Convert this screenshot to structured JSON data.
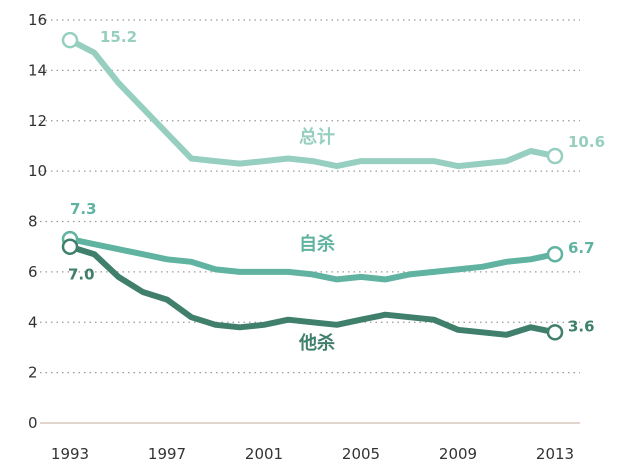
{
  "chart_data": {
    "type": "line",
    "title": "",
    "xlabel": "",
    "ylabel": "",
    "xlim": [
      1993,
      2013
    ],
    "ylim": [
      0,
      16
    ],
    "x_ticks": [
      "1993",
      "1997",
      "2001",
      "2005",
      "2009",
      "2013"
    ],
    "y_ticks": [
      "0",
      "2",
      "4",
      "6",
      "8",
      "10",
      "12",
      "14",
      "16"
    ],
    "grid": "horizontal dotted",
    "x": [
      1993,
      1994,
      1995,
      1996,
      1997,
      1998,
      1999,
      2000,
      2001,
      2002,
      2003,
      2004,
      2005,
      2006,
      2007,
      2008,
      2009,
      2010,
      2011,
      2012,
      2013
    ],
    "series": [
      {
        "name": "总计",
        "color": "#96cfc0",
        "values": [
          15.2,
          14.7,
          13.5,
          12.5,
          11.5,
          10.5,
          10.4,
          10.3,
          10.4,
          10.5,
          10.4,
          10.2,
          10.4,
          10.4,
          10.4,
          10.4,
          10.2,
          10.3,
          10.4,
          10.8,
          10.6
        ],
        "start_label": "15.2",
        "end_label": "10.6"
      },
      {
        "name": "自杀",
        "color": "#5fb3a0",
        "values": [
          7.3,
          7.1,
          6.9,
          6.7,
          6.5,
          6.4,
          6.1,
          6.0,
          6.0,
          6.0,
          5.9,
          5.7,
          5.8,
          5.7,
          5.9,
          6.0,
          6.1,
          6.2,
          6.4,
          6.5,
          6.7
        ],
        "start_label": "7.3",
        "end_label": "6.7"
      },
      {
        "name": "他杀",
        "color": "#3f7f6b",
        "values": [
          7.0,
          6.7,
          5.8,
          5.2,
          4.9,
          4.2,
          3.9,
          3.8,
          3.9,
          4.1,
          4.0,
          3.9,
          4.1,
          4.3,
          4.2,
          4.1,
          3.7,
          3.6,
          3.5,
          3.8,
          3.6
        ],
        "start_label": "7.0",
        "end_label": "3.6"
      }
    ]
  }
}
